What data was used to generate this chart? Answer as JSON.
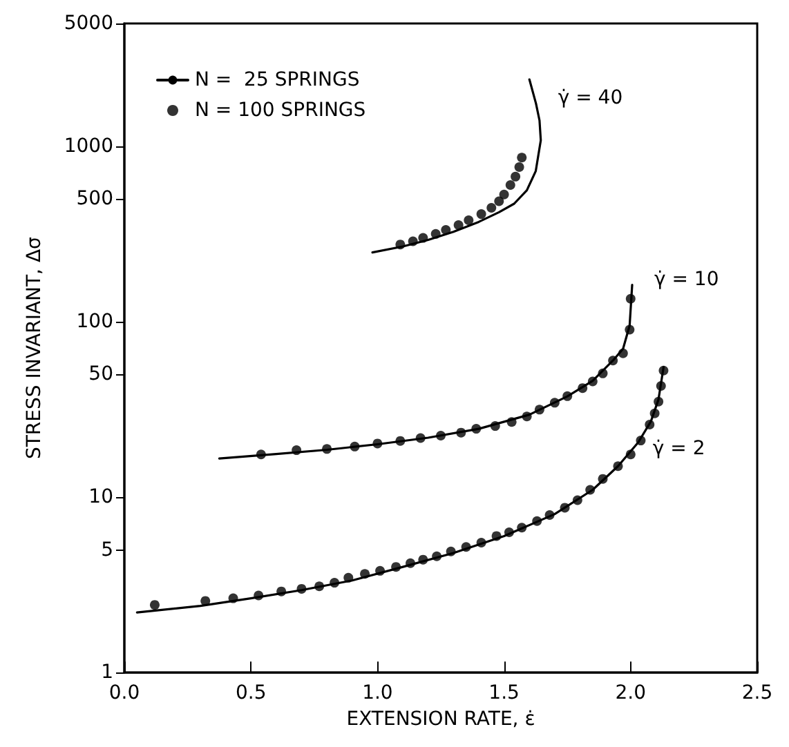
{
  "chart_data": {
    "type": "line",
    "xlabel": "EXTENSION RATE, ε̇",
    "ylabel": "STRESS INVARIANT, Δσ",
    "log": "y",
    "xlim": [
      0,
      2.5
    ],
    "xticks": [
      {
        "value": 0,
        "label": "0.0"
      },
      {
        "value": 0.5,
        "label": "0.5"
      },
      {
        "value": 1,
        "label": "1.0"
      },
      {
        "value": 1.5,
        "label": "1.5"
      },
      {
        "value": 2,
        "label": "2.0"
      },
      {
        "value": 2.5,
        "label": "2.5"
      }
    ],
    "ylim": [
      1,
      5000
    ],
    "yticks": [
      1,
      5,
      10,
      50,
      100,
      500,
      1000,
      5000
    ],
    "grid": false,
    "legend": "top left",
    "annotations": [
      {
        "text": "γ̇ = 40",
        "x": 1.626,
        "y": 1750
      },
      {
        "text": "γ̇ = 10",
        "x": 2.006,
        "y": 162
      },
      {
        "text": "γ̇ = 2",
        "x": 2.0,
        "y": 17.5
      }
    ],
    "series": [
      {
        "name": "N =  25 SPRINGS",
        "marker": "none",
        "line_style": "solid",
        "color": "#000000",
        "x": [
          0.05,
          0.3,
          0.5,
          0.7,
          0.9,
          1.1,
          1.3,
          1.5,
          1.7,
          1.85,
          1.95,
          2.03,
          2.08,
          2.11,
          2.13
        ],
        "values": [
          2.2,
          2.4,
          2.65,
          2.95,
          3.35,
          4.0,
          4.8,
          6.0,
          8.0,
          11.0,
          15.0,
          20.5,
          27.0,
          36.0,
          55.0
        ]
      },
      {
        "marker": "none",
        "line_style": "solid",
        "color": "#000000",
        "x": [
          0.375,
          0.6,
          0.8,
          1.0,
          1.2,
          1.4,
          1.6,
          1.75,
          1.85,
          1.93,
          1.97,
          1.996,
          2.006
        ],
        "values": [
          16.6,
          17.6,
          18.6,
          20.0,
          21.8,
          24.5,
          29.5,
          37.5,
          46.0,
          60.0,
          70.0,
          95.0,
          162.0
        ]
      },
      {
        "marker": "none",
        "line_style": "solid",
        "color": "#000000",
        "x": [
          0.98,
          1.1,
          1.2,
          1.3,
          1.4,
          1.48,
          1.54,
          1.59,
          1.625,
          1.645,
          1.64,
          1.626,
          1.6
        ],
        "values": [
          248,
          268,
          292,
          325,
          370,
          420,
          470,
          560,
          720,
          1080,
          1400,
          1750,
          2400
        ]
      },
      {
        "name": "N = 100 SPRINGS",
        "type": "scatter",
        "marker": "circle",
        "color": "#000000",
        "x": [
          0.12,
          0.32,
          0.43,
          0.53,
          0.62,
          0.7,
          0.77,
          0.83,
          0.885,
          0.95,
          1.01,
          1.073,
          1.13,
          1.18,
          1.234,
          1.29,
          1.35,
          1.41,
          1.47,
          1.52,
          1.57,
          1.63,
          1.68,
          1.74,
          1.79,
          1.84,
          1.89,
          1.95,
          2.0,
          2.04,
          2.075,
          2.095,
          2.11,
          2.12,
          2.13
        ],
        "values": [
          2.43,
          2.56,
          2.65,
          2.75,
          2.9,
          3.0,
          3.1,
          3.25,
          3.47,
          3.65,
          3.8,
          4.0,
          4.2,
          4.4,
          4.6,
          4.9,
          5.2,
          5.5,
          6.0,
          6.3,
          6.7,
          7.3,
          7.9,
          8.7,
          9.6,
          11.0,
          12.7,
          15.0,
          17.5,
          21.0,
          25.9,
          30.0,
          35.0,
          43.0,
          52.6
        ]
      },
      {
        "type": "scatter",
        "marker": "circle",
        "color": "#000000",
        "x": [
          0.54,
          0.68,
          0.8,
          0.91,
          1.0,
          1.09,
          1.17,
          1.25,
          1.33,
          1.39,
          1.465,
          1.53,
          1.59,
          1.64,
          1.7,
          1.75,
          1.81,
          1.85,
          1.89,
          1.93,
          1.97,
          1.996,
          2.0
        ],
        "values": [
          17.5,
          18.5,
          18.8,
          19.4,
          20.2,
          20.9,
          21.7,
          22.4,
          23.3,
          24.5,
          25.4,
          26.8,
          28.8,
          31.5,
          34.5,
          37.6,
          41.8,
          45.6,
          50.7,
          60.0,
          66.0,
          90.0,
          135.0
        ]
      },
      {
        "type": "scatter",
        "marker": "circle",
        "color": "#000000",
        "x": [
          1.09,
          1.14,
          1.18,
          1.23,
          1.27,
          1.32,
          1.36,
          1.41,
          1.45,
          1.48,
          1.5,
          1.525,
          1.545,
          1.56,
          1.57
        ],
        "values": [
          275,
          287,
          300,
          316,
          333,
          355,
          378,
          410,
          445,
          485,
          530,
          600,
          670,
          760,
          860
        ]
      }
    ]
  }
}
